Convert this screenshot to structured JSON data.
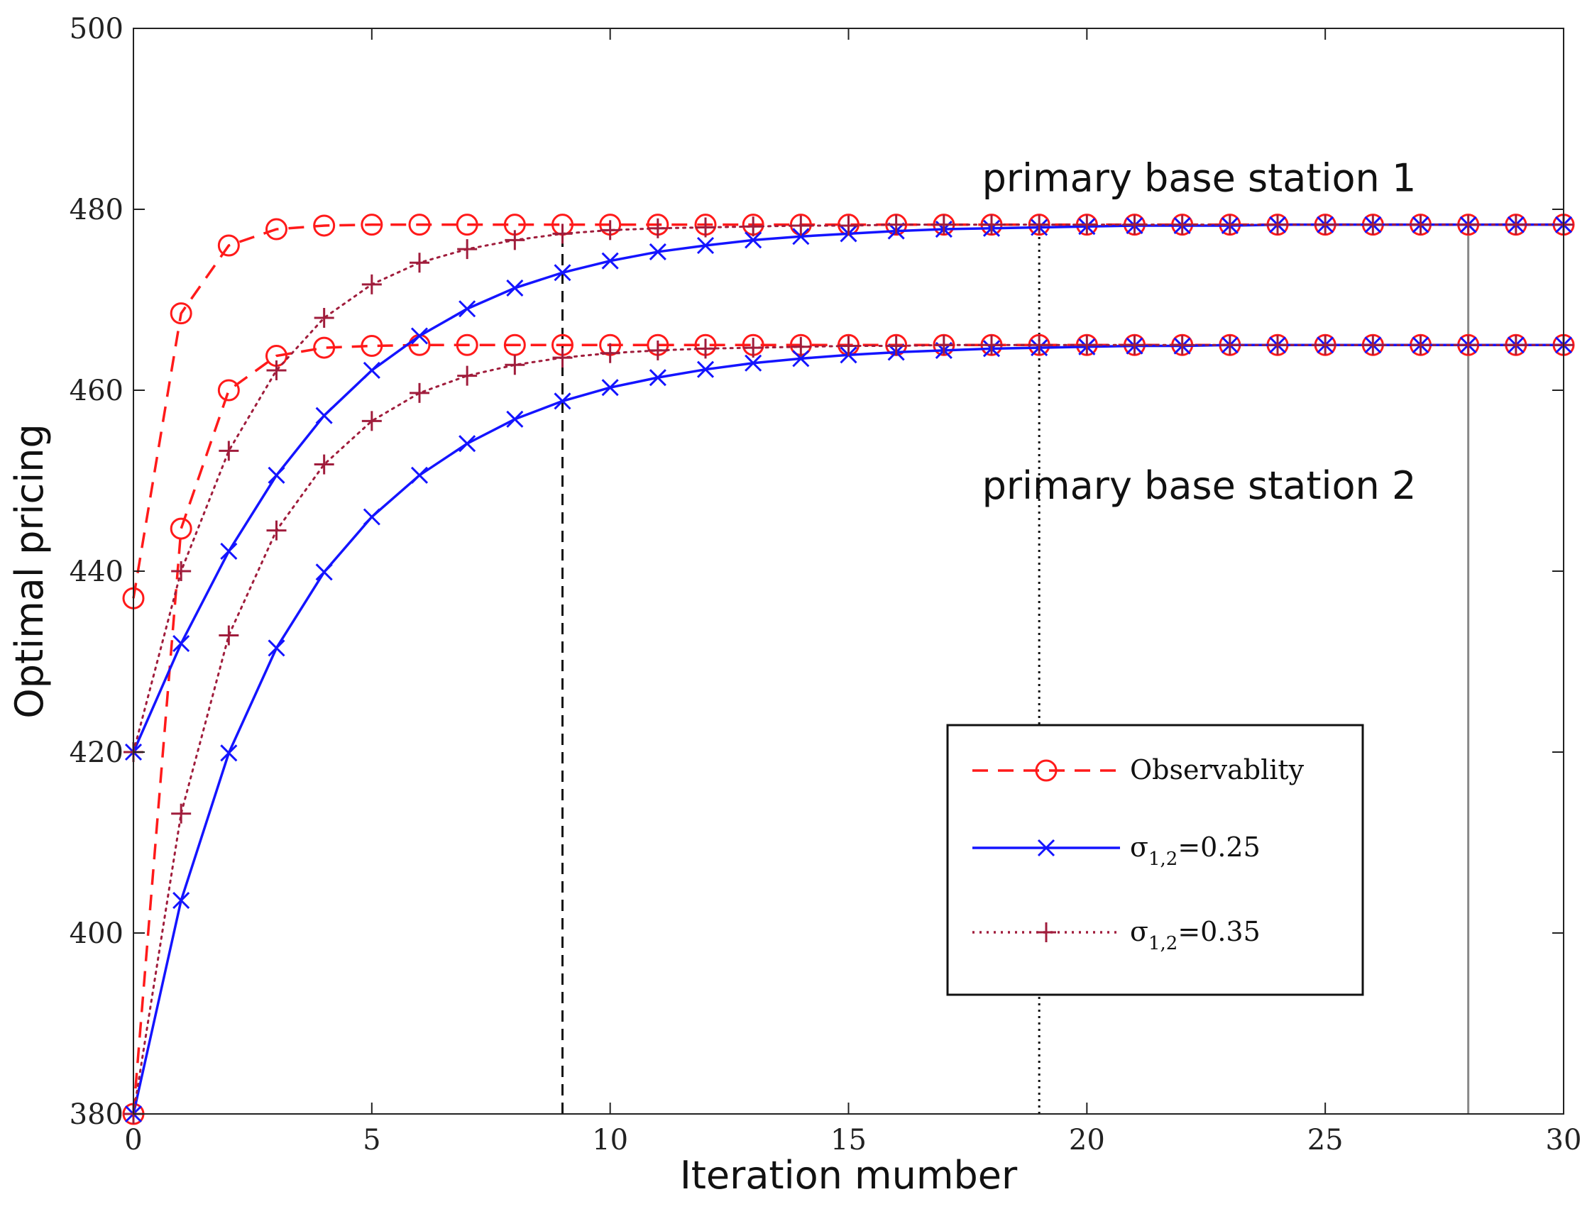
{
  "chart_data": {
    "type": "line",
    "title": "",
    "xlabel": "Iteration mumber",
    "ylabel": "Optimal pricing",
    "xlim": [
      0,
      30
    ],
    "ylim": [
      380,
      500
    ],
    "xticks": [
      0,
      5,
      10,
      15,
      20,
      25,
      30
    ],
    "yticks": [
      380,
      400,
      420,
      440,
      460,
      480,
      500
    ],
    "grid": false,
    "legend_position": "bottom-right",
    "annotations": [
      {
        "text": "primary base station 1",
        "x": 17.8,
        "y": 482
      },
      {
        "text": "primary base station 2",
        "x": 17.8,
        "y": 448
      }
    ],
    "vlines": [
      {
        "x": 9,
        "style": "dashed",
        "color": "#111111",
        "from": 380,
        "to": 478
      },
      {
        "x": 19,
        "style": "dotted",
        "color": "#111111",
        "from": 380,
        "to": 478
      },
      {
        "x": 28,
        "style": "solid",
        "color": "#888888",
        "from": 380,
        "to": 478
      }
    ],
    "x": [
      0,
      1,
      2,
      3,
      4,
      5,
      6,
      7,
      8,
      9,
      10,
      11,
      12,
      13,
      14,
      15,
      16,
      17,
      18,
      19,
      20,
      21,
      22,
      23,
      24,
      25,
      26,
      27,
      28,
      29,
      30
    ],
    "series": [
      {
        "name": "Observablity",
        "legend_main": "Observablity",
        "legend_sub": "",
        "legend_tail": "",
        "group": "observ",
        "color": "#ff1a1a",
        "dash": "22,14",
        "marker": "circle",
        "values": [
          437,
          468.5,
          476,
          477.8,
          478.2,
          478.3,
          478.3,
          478.3,
          478.3,
          478.3,
          478.3,
          478.3,
          478.3,
          478.3,
          478.3,
          478.3,
          478.3,
          478.3,
          478.3,
          478.3,
          478.3,
          478.3,
          478.3,
          478.3,
          478.3,
          478.3,
          478.3,
          478.3,
          478.3,
          478.3,
          478.3
        ]
      },
      {
        "name": "Observablity (station 2)",
        "group": "observ",
        "color": "#ff1a1a",
        "dash": "22,14",
        "marker": "circle",
        "values": [
          380,
          444.7,
          460,
          463.8,
          464.7,
          464.9,
          465,
          465,
          465,
          465,
          465,
          465,
          465,
          465,
          465,
          465,
          465,
          465,
          465,
          465,
          465,
          465,
          465,
          465,
          465,
          465,
          465,
          465,
          465,
          465,
          465
        ]
      },
      {
        "name": "σ1,2=0.25",
        "legend_main": "σ",
        "legend_sub": "1,2",
        "legend_tail": "=0.25",
        "group": "s025",
        "color": "#1414ff",
        "dash": "",
        "marker": "x",
        "values": [
          420,
          432,
          442.2,
          450.6,
          457.2,
          462.2,
          466,
          469,
          471.3,
          473,
          474.3,
          475.3,
          476,
          476.6,
          477,
          477.3,
          477.6,
          477.8,
          477.9,
          478,
          478.1,
          478.2,
          478.2,
          478.2,
          478.3,
          478.3,
          478.3,
          478.3,
          478.3,
          478.3,
          478.3
        ]
      },
      {
        "name": "σ1,2=0.25 (station 2)",
        "group": "s025",
        "color": "#1414ff",
        "dash": "",
        "marker": "x",
        "values": [
          380,
          403.6,
          419.9,
          431.5,
          439.9,
          446,
          450.6,
          454.1,
          456.8,
          458.8,
          460.3,
          461.4,
          462.3,
          463,
          463.5,
          463.9,
          464.2,
          464.4,
          464.6,
          464.7,
          464.8,
          464.9,
          464.9,
          465,
          465,
          465,
          465,
          465,
          465,
          465,
          465
        ]
      },
      {
        "name": "σ1,2=0.35",
        "legend_main": "σ",
        "legend_sub": "1,2",
        "legend_tail": "=0.35",
        "group": "s035",
        "color": "#a01d3c",
        "dash": "3,7",
        "marker": "plus",
        "values": [
          420,
          440,
          453.3,
          462.2,
          468,
          471.7,
          474.1,
          475.6,
          476.6,
          477.3,
          477.7,
          477.9,
          478,
          478.1,
          478.2,
          478.2,
          478.3,
          478.3,
          478.3,
          478.3,
          478.3,
          478.3,
          478.3,
          478.3,
          478.3,
          478.3,
          478.3,
          478.3,
          478.3,
          478.3,
          478.3
        ]
      },
      {
        "name": "σ1,2=0.35 (station 2)",
        "group": "s035",
        "color": "#a01d3c",
        "dash": "3,7",
        "marker": "plus",
        "values": [
          380,
          413.2,
          432.9,
          444.5,
          451.8,
          456.6,
          459.7,
          461.6,
          462.8,
          463.6,
          464.1,
          464.4,
          464.6,
          464.7,
          464.8,
          464.9,
          464.9,
          465,
          465,
          465,
          465,
          465,
          465,
          465,
          465,
          465,
          465,
          465,
          465,
          465,
          465
        ]
      }
    ]
  }
}
